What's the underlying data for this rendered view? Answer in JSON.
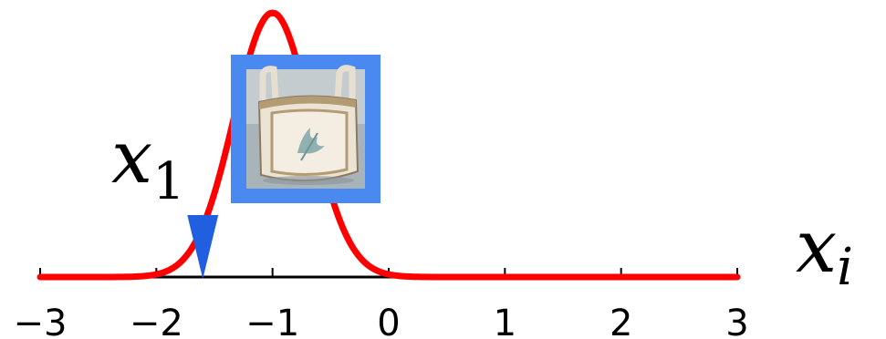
{
  "axis": {
    "xlim": [
      -3,
      3
    ],
    "ticks": [
      -3,
      -2,
      -1,
      0,
      1,
      2,
      3
    ],
    "tick_labels": [
      "−3",
      "−2",
      "−1",
      "0",
      "1",
      "2",
      "3"
    ],
    "label": {
      "base": "x",
      "sub": "i"
    }
  },
  "curve": {
    "type": "gaussian",
    "mean": -1.0,
    "std": 0.33,
    "color": "#ff0000"
  },
  "marker": {
    "x": -1.6,
    "color": "#1f5fe0",
    "label": {
      "base": "x",
      "sub": "1"
    }
  },
  "thumbnail": {
    "frame_color": "#4a8af0",
    "depicts": "canvas-tote-bag"
  }
}
